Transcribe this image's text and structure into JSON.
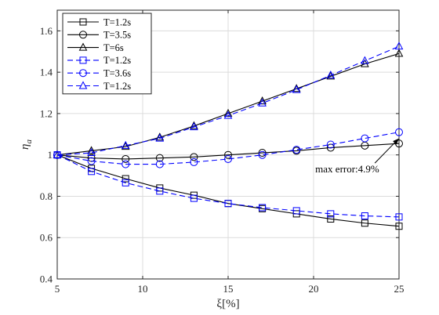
{
  "chart_data": {
    "type": "line",
    "title": "",
    "xlabel": "ξ[%]",
    "ylabel": "ηa",
    "ylabel_main": "η",
    "ylabel_sub": "a",
    "xlim": [
      5,
      25
    ],
    "ylim": [
      0.4,
      1.7
    ],
    "xticks": [
      5,
      10,
      15,
      20,
      25
    ],
    "yticks": [
      0.4,
      0.6,
      0.8,
      1.0,
      1.2,
      1.4,
      1.6
    ],
    "xtick_labels": [
      "5",
      "10",
      "15",
      "20",
      "25"
    ],
    "ytick_labels": [
      "0.4",
      "0.6",
      "0.8",
      "1",
      "1.2",
      "1.4",
      "1.6"
    ],
    "grid": true,
    "legend_position": "top-left",
    "x": [
      5,
      7,
      9,
      11,
      13,
      15,
      17,
      19,
      21,
      23,
      25
    ],
    "series": [
      {
        "name": "T=1.2s",
        "color": "#000000",
        "dash": "solid",
        "marker": "square",
        "values": [
          1.0,
          0.935,
          0.885,
          0.84,
          0.805,
          0.765,
          0.74,
          0.715,
          0.69,
          0.67,
          0.655
        ]
      },
      {
        "name": "T=3.5s",
        "color": "#000000",
        "dash": "solid",
        "marker": "circle",
        "values": [
          1.0,
          0.985,
          0.98,
          0.985,
          0.99,
          1.0,
          1.01,
          1.02,
          1.035,
          1.045,
          1.055
        ]
      },
      {
        "name": "T=6s",
        "color": "#000000",
        "dash": "solid",
        "marker": "triangle",
        "values": [
          1.0,
          1.02,
          1.04,
          1.085,
          1.14,
          1.2,
          1.26,
          1.32,
          1.38,
          1.44,
          1.49
        ]
      },
      {
        "name": "T=1.2s",
        "color": "#0000ff",
        "dash": "dashed",
        "marker": "square",
        "values": [
          1.0,
          0.92,
          0.865,
          0.825,
          0.79,
          0.765,
          0.745,
          0.73,
          0.715,
          0.705,
          0.7
        ]
      },
      {
        "name": "T=3.6s",
        "color": "#0000ff",
        "dash": "dashed",
        "marker": "circle",
        "values": [
          1.0,
          0.97,
          0.955,
          0.955,
          0.965,
          0.98,
          1.0,
          1.025,
          1.05,
          1.08,
          1.11
        ]
      },
      {
        "name": "T=1.2s",
        "color": "#0000ff",
        "dash": "dashed",
        "marker": "triangle",
        "values": [
          1.0,
          1.01,
          1.045,
          1.08,
          1.135,
          1.19,
          1.25,
          1.315,
          1.385,
          1.455,
          1.525
        ]
      }
    ],
    "annotations": [
      {
        "text": "max error:4.9%",
        "x": 20.1,
        "y": 0.915,
        "arrow_to": [
          25,
          1.08
        ]
      }
    ]
  }
}
